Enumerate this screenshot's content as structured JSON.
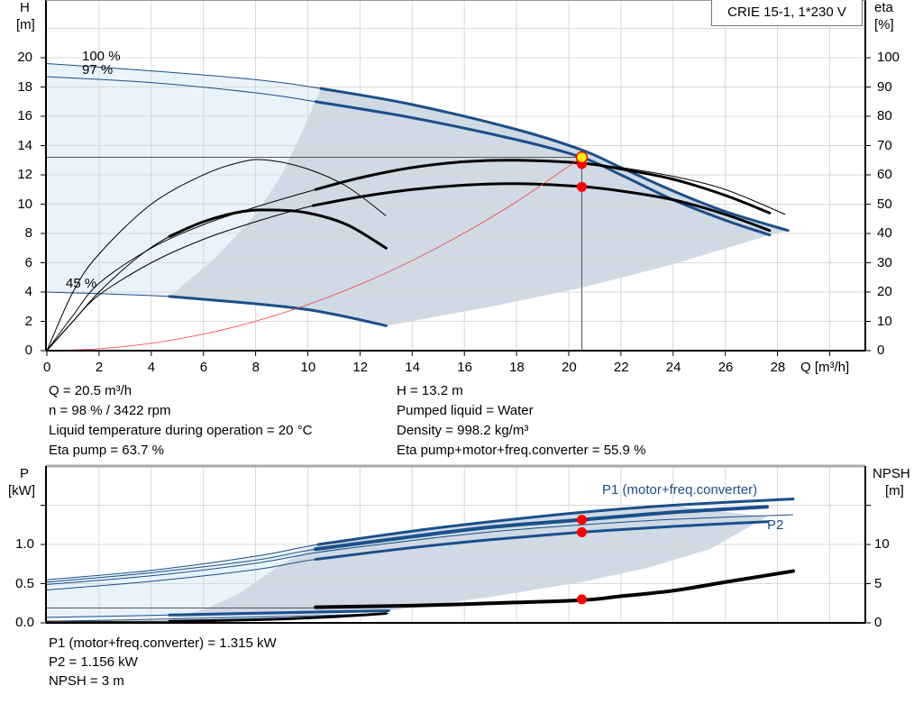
{
  "chart_data": [
    {
      "type": "line",
      "title": "CRIE 15-1, 1*230 V",
      "xlabel": "Q [m³/h]",
      "ylabel_left": [
        "H",
        "[m]"
      ],
      "ylabel_right": [
        "eta",
        "[%]"
      ],
      "xlim": [
        0,
        31.4
      ],
      "ylim_left": [
        0,
        23.9
      ],
      "ylim_right": [
        0,
        119.7
      ],
      "x_ticks": [
        0,
        2,
        4,
        6,
        8,
        10,
        12,
        14,
        16,
        18,
        20,
        22,
        24,
        26,
        28
      ],
      "y_ticks_left": [
        0,
        2,
        4,
        6,
        8,
        10,
        12,
        14,
        16,
        18,
        20
      ],
      "y_ticks_right": [
        0,
        10,
        20,
        30,
        40,
        50,
        60,
        70,
        80,
        90,
        100
      ],
      "grid": true,
      "legend": "top-right",
      "colors": {
        "curve": "#1a4f8a",
        "eta": "#000000",
        "system": "#ff3b3b",
        "light_area": "#eaf3fc",
        "dark_area": "#cfdae5",
        "point": "#ff0000",
        "duty_point": "#ffee00"
      },
      "regions": [
        {
          "kind": "light",
          "points": [
            [
              0,
              19.6
            ],
            [
              4,
              19.1
            ],
            [
              8,
              18.5
            ],
            [
              10.5,
              17.9
            ],
            [
              9.8,
              15
            ],
            [
              9,
              12
            ],
            [
              8,
              9.3
            ],
            [
              6.5,
              6.4
            ],
            [
              4.7,
              3.7
            ],
            [
              0,
              4.0
            ]
          ]
        },
        {
          "kind": "dark",
          "points": [
            [
              10.5,
              17.9
            ],
            [
              14,
              16.8
            ],
            [
              18,
              15.1
            ],
            [
              20.5,
              13.7
            ],
            [
              22,
              12.5
            ],
            [
              24,
              10.9
            ],
            [
              26,
              9.5
            ],
            [
              28.4,
              8.2
            ],
            [
              27.7,
              7.9
            ],
            [
              24,
              5.9
            ],
            [
              20.5,
              4.3
            ],
            [
              17,
              3.0
            ],
            [
              13,
              1.7
            ],
            [
              10,
              2.8
            ],
            [
              8,
              3.2
            ],
            [
              4.7,
              3.7
            ],
            [
              6.5,
              6.4
            ],
            [
              8,
              9.3
            ],
            [
              9,
              12
            ],
            [
              9.8,
              15
            ]
          ]
        }
      ],
      "series": [
        {
          "name": "100 %",
          "axis": "H",
          "color": "#1a4f8a",
          "thick_from": 10.5,
          "points": [
            [
              0,
              19.6
            ],
            [
              4,
              19.1
            ],
            [
              8,
              18.5
            ],
            [
              10.5,
              17.9
            ],
            [
              14,
              16.8
            ],
            [
              18,
              15.1
            ],
            [
              20.5,
              13.7
            ],
            [
              22,
              12.5
            ],
            [
              24,
              10.9
            ],
            [
              26,
              9.5
            ],
            [
              28.4,
              8.2
            ]
          ]
        },
        {
          "name": "97 %",
          "axis": "H",
          "color": "#1a4f8a",
          "thick_from": 10.3,
          "points": [
            [
              0,
              18.7
            ],
            [
              4,
              18.3
            ],
            [
              8,
              17.6
            ],
            [
              10.3,
              17.0
            ],
            [
              14,
              15.9
            ],
            [
              18,
              14.4
            ],
            [
              20.5,
              13.2
            ],
            [
              22,
              12.0
            ],
            [
              24,
              10.3
            ],
            [
              26,
              8.9
            ],
            [
              27.7,
              7.9
            ]
          ]
        },
        {
          "name": "45 %",
          "axis": "H",
          "color": "#1a4f8a",
          "thick_from": 4.7,
          "points": [
            [
              0,
              4.0
            ],
            [
              4.7,
              3.7
            ],
            [
              8,
              3.2
            ],
            [
              10,
              2.8
            ],
            [
              11.5,
              2.3
            ],
            [
              13,
              1.7
            ]
          ]
        },
        {
          "axis": "eta",
          "color": "#000000",
          "thick_from": 10.3,
          "points": [
            [
              0,
              0
            ],
            [
              1,
              12
            ],
            [
              2,
              23
            ],
            [
              4,
              35
            ],
            [
              6,
              43
            ],
            [
              8,
              49
            ],
            [
              10.3,
              55
            ],
            [
              12,
              59
            ],
            [
              14,
              62.5
            ],
            [
              16,
              64.5
            ],
            [
              18,
              65
            ],
            [
              20.5,
              64
            ],
            [
              22,
              62
            ],
            [
              24,
              58.5
            ],
            [
              26,
              53
            ],
            [
              27.7,
              47
            ]
          ]
        },
        {
          "axis": "eta",
          "color": "#000000",
          "thick_from": 10.2,
          "points": [
            [
              0,
              0
            ],
            [
              1,
              10
            ],
            [
              2,
              19
            ],
            [
              4,
              30
            ],
            [
              6,
              38
            ],
            [
              8,
              44
            ],
            [
              10.2,
              49.5
            ],
            [
              12,
              52.5
            ],
            [
              14,
              55
            ],
            [
              16,
              56.5
            ],
            [
              18,
              57
            ],
            [
              20.5,
              56
            ],
            [
              22,
              54.5
            ],
            [
              24,
              51.5
            ],
            [
              26,
              46.5
            ],
            [
              27.7,
              41
            ]
          ]
        },
        {
          "axis": "eta",
          "color": "#000000",
          "thick_from": 99,
          "points": [
            [
              20.5,
              64
            ],
            [
              22,
              62.5
            ],
            [
              24,
              59.5
            ],
            [
              26,
              55
            ],
            [
              28.3,
              46.5
            ]
          ]
        },
        {
          "axis": "eta",
          "color": "#000000",
          "thick_from": 99,
          "points": [
            [
              0,
              0
            ],
            [
              1,
              20
            ],
            [
              2,
              33
            ],
            [
              4,
              50
            ],
            [
              6,
              60
            ],
            [
              7.5,
              64.5
            ],
            [
              8.5,
              65
            ],
            [
              10,
              62
            ],
            [
              11.5,
              56
            ],
            [
              13,
              46
            ]
          ]
        },
        {
          "axis": "eta",
          "color": "#000000",
          "thick_from": 4.7,
          "points": [
            [
              0,
              0
            ],
            [
              1,
              10
            ],
            [
              2,
              20
            ],
            [
              3.5,
              32
            ],
            [
              4.7,
              39
            ],
            [
              6,
              44
            ],
            [
              7.5,
              47.5
            ],
            [
              8.7,
              48
            ],
            [
              10,
              47
            ],
            [
              11.5,
              43
            ],
            [
              13,
              35
            ]
          ]
        },
        {
          "axis": "H",
          "color": "#ff3b3b",
          "system": true,
          "thick_from": 99,
          "points": [
            [
              0,
              0
            ],
            [
              2,
              0.13
            ],
            [
              4,
              0.5
            ],
            [
              6,
              1.13
            ],
            [
              8,
              2.01
            ],
            [
              10,
              3.14
            ],
            [
              12,
              4.52
            ],
            [
              14,
              6.15
            ],
            [
              16,
              8.04
            ],
            [
              18,
              10.17
            ],
            [
              20.5,
              13.2
            ]
          ]
        }
      ],
      "duty_point": {
        "Q": 20.5,
        "H": 13.2
      },
      "points": [
        {
          "axis": "eta",
          "Q": 20.5,
          "value": 63.7
        },
        {
          "axis": "eta",
          "Q": 20.5,
          "value": 55.9
        }
      ]
    },
    {
      "type": "line",
      "xlim": [
        0,
        31.4
      ],
      "ylabel_left": [
        "P",
        "[kW]"
      ],
      "ylabel_right": [
        "NPSH",
        "[m]"
      ],
      "ylim_left": [
        0,
        2.0
      ],
      "ylim_right": [
        0,
        20
      ],
      "y_ticks_left": [
        "0.0",
        "0.5",
        "1.0"
      ],
      "y_ticks_right": [
        "0",
        "5",
        "10"
      ],
      "grid": true,
      "curve_labels": {
        "p1": "P1 (motor+freq.converter)",
        "p2": "P2"
      },
      "regions": [
        {
          "kind": "light",
          "points": [
            [
              0,
              0.55
            ],
            [
              4,
              0.67
            ],
            [
              8,
              0.85
            ],
            [
              10.4,
              1.0
            ],
            [
              9,
              0.75
            ],
            [
              7.3,
              0.36
            ],
            [
              6,
              0.17
            ],
            [
              4.7,
              0.06
            ],
            [
              0,
              0.05
            ]
          ]
        },
        {
          "kind": "dark",
          "points": [
            [
              10.4,
              1.0
            ],
            [
              14,
              1.17
            ],
            [
              17,
              1.29
            ],
            [
              20.5,
              1.41
            ],
            [
              24,
              1.5
            ],
            [
              27.6,
              1.35
            ],
            [
              25.4,
              0.94
            ],
            [
              23,
              0.7
            ],
            [
              20.5,
              0.52
            ],
            [
              17,
              0.33
            ],
            [
              13,
              0.15
            ],
            [
              9,
              0.08
            ],
            [
              4.7,
              0.06
            ],
            [
              6,
              0.17
            ],
            [
              7.3,
              0.36
            ],
            [
              9,
              0.75
            ]
          ]
        }
      ],
      "series": [
        {
          "axis": "P",
          "color": "#1a4f8a",
          "thick_from": 10.4,
          "points": [
            [
              0,
              0.55
            ],
            [
              4,
              0.67
            ],
            [
              8,
              0.85
            ],
            [
              10.4,
              1.0
            ],
            [
              14,
              1.17
            ],
            [
              17,
              1.29
            ],
            [
              20.5,
              1.41
            ],
            [
              24,
              1.5
            ],
            [
              28.6,
              1.58
            ]
          ]
        },
        {
          "name": "P1 (motor+freq.converter)",
          "axis": "P",
          "color": "#1a4f8a",
          "thick_from": 10.3,
          "heavy": true,
          "points": [
            [
              0,
              0.52
            ],
            [
              4,
              0.64
            ],
            [
              8,
              0.8
            ],
            [
              10.3,
              0.94
            ],
            [
              14,
              1.1
            ],
            [
              17,
              1.22
            ],
            [
              20.5,
              1.315
            ],
            [
              24,
              1.41
            ],
            [
              27.6,
              1.48
            ]
          ]
        },
        {
          "axis": "P",
          "color": "#1a4f8a",
          "thick_from": 99,
          "points": [
            [
              0,
              0.49
            ],
            [
              4,
              0.6
            ],
            [
              8,
              0.76
            ],
            [
              10.4,
              0.9
            ],
            [
              14,
              1.05
            ],
            [
              17,
              1.16
            ],
            [
              20.5,
              1.25
            ],
            [
              24,
              1.32
            ],
            [
              28.6,
              1.38
            ]
          ]
        },
        {
          "name": "P2",
          "axis": "P",
          "color": "#1a4f8a",
          "thick_from": 10.3,
          "points": [
            [
              0,
              0.42
            ],
            [
              4,
              0.53
            ],
            [
              8,
              0.68
            ],
            [
              10.3,
              0.81
            ],
            [
              14,
              0.96
            ],
            [
              17,
              1.06
            ],
            [
              20.5,
              1.156
            ],
            [
              24,
              1.23
            ],
            [
              27.6,
              1.29
            ]
          ]
        },
        {
          "axis": "P",
          "color": "#1a4f8a",
          "thick_from": 4.7,
          "points": [
            [
              0,
              0.07
            ],
            [
              4.7,
              0.1
            ],
            [
              9,
              0.13
            ],
            [
              13.1,
              0.155
            ]
          ]
        },
        {
          "axis": "P",
          "color": "#1a4f8a",
          "thick_from": 99,
          "points": [
            [
              0,
              0.02
            ],
            [
              4.7,
              0.05
            ],
            [
              9,
              0.08
            ],
            [
              13.1,
              0.12
            ]
          ]
        },
        {
          "axis": "NPSH",
          "color": "#000000",
          "thick_from": 4.7,
          "points": [
            [
              0,
              0.2
            ],
            [
              4.7,
              0.2
            ],
            [
              8,
              0.4
            ],
            [
              10.5,
              0.7
            ],
            [
              13,
              1.2
            ]
          ]
        },
        {
          "axis": "NPSH",
          "color": "#555555",
          "thick_from": 99,
          "points": [
            [
              0,
              1.9
            ],
            [
              10.3,
              1.9
            ]
          ]
        },
        {
          "axis": "NPSH",
          "color": "#000000",
          "thick_from": 10.3,
          "heavy": true,
          "points": [
            [
              10.3,
              2.0
            ],
            [
              14,
              2.2
            ],
            [
              17,
              2.5
            ],
            [
              20.5,
              2.9
            ],
            [
              22,
              3.4
            ],
            [
              24,
              4.1
            ],
            [
              26,
              5.2
            ],
            [
              28.6,
              6.6
            ]
          ]
        }
      ],
      "points": [
        {
          "axis": "P",
          "Q": 20.5,
          "value": 1.315
        },
        {
          "axis": "P",
          "Q": 20.5,
          "value": 1.156
        },
        {
          "axis": "NPSH",
          "Q": 20.5,
          "value": 3
        }
      ]
    }
  ],
  "info_top": {
    "left": [
      "Q = 20.5 m³/h",
      "n = 98 % / 3422 rpm",
      "Liquid temperature during operation = 20 °C",
      "Eta pump = 63.7 %"
    ],
    "right": [
      "H = 13.2 m",
      "Pumped liquid = Water",
      "Density = 998.2 kg/m³",
      "Eta pump+motor+freq.converter = 55.9 %"
    ]
  },
  "info_bottom": [
    "P1 (motor+freq.converter) = 1.315 kW",
    "P2 = 1.156 kW",
    "NPSH = 3 m"
  ]
}
